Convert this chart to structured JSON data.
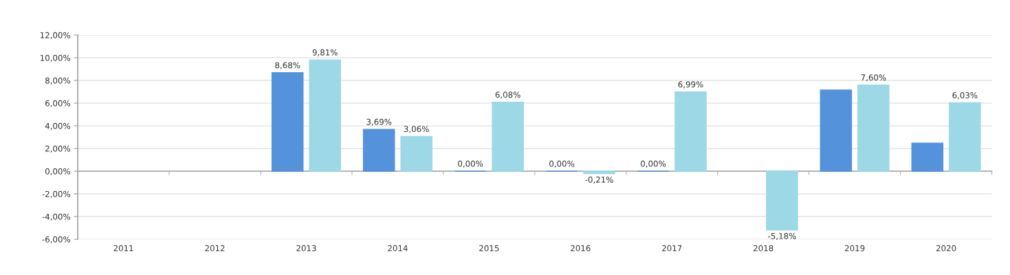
{
  "chart_data": {
    "type": "bar",
    "categories": [
      "2011",
      "2012",
      "2013",
      "2014",
      "2015",
      "2016",
      "2017",
      "2018",
      "2019",
      "2020"
    ],
    "series": [
      {
        "color": "#5592dc",
        "values": [
          null,
          null,
          8.68,
          3.69,
          0,
          0,
          0,
          null,
          7.15,
          2.48
        ],
        "value_labels": [
          null,
          null,
          "8,68%",
          "3,69%",
          "0,00%",
          "0,00%",
          "0,00%",
          null,
          null,
          null
        ]
      },
      {
        "color": "#9dd8e6",
        "values": [
          null,
          null,
          9.81,
          3.06,
          6.08,
          -0.21,
          6.99,
          -5.18,
          7.6,
          6.03
        ],
        "value_labels": [
          null,
          null,
          "9,81%",
          "3,06%",
          "6,08%",
          "-0,21%",
          "6,99%",
          "-5,18%",
          "7,60%",
          "6,03%"
        ]
      }
    ],
    "ylim": [
      -6,
      12
    ],
    "yticks": [
      {
        "value": -6,
        "label": "-6,00%"
      },
      {
        "value": -4,
        "label": "-4,00%"
      },
      {
        "value": -2,
        "label": "-2,00%"
      },
      {
        "value": 0,
        "label": "0,00%"
      },
      {
        "value": 2,
        "label": "2,00%"
      },
      {
        "value": 4,
        "label": "4,00%"
      },
      {
        "value": 6,
        "label": "6,00%"
      },
      {
        "value": 8,
        "label": "8,00%"
      },
      {
        "value": 10,
        "label": "10,00%"
      },
      {
        "value": 12,
        "label": "12,00%"
      }
    ],
    "grid": "y"
  }
}
